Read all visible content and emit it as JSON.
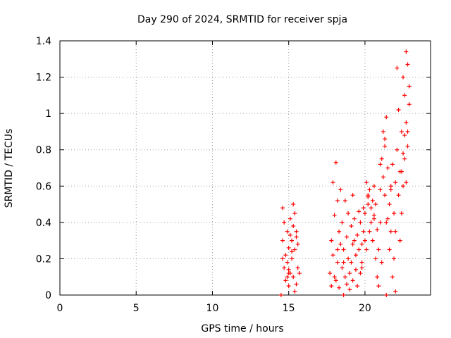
{
  "chart_data": {
    "type": "scatter",
    "title": "Day 290 of 2024, SRMTID for receiver spja",
    "xlabel": "GPS time / hours",
    "ylabel": "SRMTID / TECUs",
    "xlim": [
      0,
      24.3
    ],
    "ylim": [
      0,
      1.4
    ],
    "xticks": [
      0,
      5,
      10,
      15,
      20
    ],
    "xtick_labels": [
      "0",
      "5",
      "10",
      "15",
      "20"
    ],
    "yticks": [
      0,
      0.2,
      0.4,
      0.6,
      0.8,
      1.0,
      1.2,
      1.4
    ],
    "ytick_labels": [
      "0",
      "0.2",
      "0.4",
      "0.6",
      "0.8",
      "1",
      "1.2",
      "1.4"
    ],
    "grid": true,
    "marker": "+",
    "color": "#ff0000",
    "series": [
      {
        "name": "SRMTID",
        "x": [
          14.5,
          14.6,
          14.6,
          14.7,
          14.8,
          14.8,
          14.9,
          14.9,
          15.0,
          15.0,
          15.1,
          15.1,
          15.2,
          15.2,
          15.3,
          15.3,
          15.4,
          15.4,
          15.5,
          15.5,
          15.6,
          15.6,
          15.7,
          15.4,
          15.3,
          14.7,
          14.9,
          15.0,
          15.2,
          15.1,
          17.7,
          17.8,
          17.8,
          17.9,
          17.9,
          18.0,
          18.0,
          18.1,
          18.1,
          18.2,
          18.2,
          18.3,
          18.3,
          18.4,
          18.4,
          18.5,
          18.5,
          18.6,
          18.6,
          18.7,
          18.7,
          18.8,
          18.8,
          18.9,
          18.9,
          19.0,
          19.0,
          19.1,
          19.1,
          19.2,
          19.2,
          19.3,
          19.3,
          19.4,
          19.4,
          19.5,
          19.5,
          19.6,
          19.6,
          19.7,
          19.7,
          19.8,
          19.8,
          19.9,
          19.9,
          20.0,
          20.0,
          20.1,
          20.1,
          20.2,
          20.2,
          20.3,
          20.3,
          20.4,
          20.4,
          20.5,
          20.5,
          20.6,
          20.6,
          20.7,
          20.7,
          20.8,
          20.8,
          20.9,
          20.9,
          21.0,
          21.0,
          21.1,
          21.1,
          21.2,
          21.2,
          21.3,
          21.3,
          21.4,
          21.4,
          21.5,
          21.5,
          21.6,
          21.6,
          21.7,
          21.7,
          21.8,
          21.8,
          21.9,
          21.9,
          22.0,
          22.0,
          22.1,
          22.1,
          22.2,
          22.2,
          22.3,
          22.3,
          22.4,
          22.4,
          22.5,
          22.5,
          22.6,
          22.6,
          22.7,
          22.7,
          22.8,
          22.8,
          22.9,
          22.9,
          14.6,
          15.0,
          15.5,
          18.2,
          18.6,
          19.2,
          19.8,
          20.2,
          20.6,
          21.0,
          21.3,
          21.7,
          22.0,
          22.4,
          22.8,
          21.4,
          22.5,
          22.6,
          22.7
        ],
        "y": [
          0.0,
          0.48,
          0.3,
          0.15,
          0.08,
          0.22,
          0.35,
          0.18,
          0.05,
          0.26,
          0.42,
          0.12,
          0.3,
          0.2,
          0.5,
          0.1,
          0.02,
          0.25,
          0.06,
          0.32,
          0.15,
          0.28,
          0.12,
          0.45,
          0.38,
          0.4,
          0.1,
          0.14,
          0.24,
          0.33,
          0.12,
          0.3,
          0.05,
          0.22,
          0.62,
          0.1,
          0.44,
          0.73,
          0.08,
          0.52,
          0.18,
          0.35,
          0.04,
          0.28,
          0.58,
          0.15,
          0.4,
          0.0,
          0.25,
          0.52,
          0.1,
          0.32,
          0.06,
          0.2,
          0.45,
          0.12,
          0.03,
          0.38,
          0.18,
          0.55,
          0.08,
          0.3,
          0.42,
          0.14,
          0.22,
          0.33,
          0.05,
          0.46,
          0.25,
          0.12,
          0.4,
          0.28,
          0.18,
          0.48,
          0.35,
          0.3,
          0.45,
          0.62,
          0.25,
          0.5,
          0.55,
          0.35,
          0.58,
          0.48,
          0.4,
          0.52,
          0.3,
          0.6,
          0.44,
          0.2,
          0.5,
          0.1,
          0.36,
          0.25,
          0.05,
          0.4,
          0.58,
          0.18,
          0.75,
          0.65,
          0.9,
          0.82,
          0.55,
          0.98,
          0.0,
          0.7,
          0.42,
          0.5,
          0.25,
          0.6,
          0.35,
          0.1,
          0.72,
          0.45,
          0.2,
          0.62,
          0.02,
          1.25,
          0.8,
          0.55,
          1.02,
          0.3,
          0.68,
          0.45,
          0.9,
          0.6,
          1.2,
          0.75,
          1.1,
          1.34,
          0.95,
          1.27,
          0.82,
          1.15,
          1.05,
          0.2,
          0.12,
          0.35,
          0.25,
          0.18,
          0.28,
          0.15,
          0.54,
          0.42,
          0.72,
          0.86,
          0.58,
          0.35,
          0.68,
          0.9,
          0.4,
          0.78,
          0.88,
          0.62
        ]
      }
    ]
  }
}
